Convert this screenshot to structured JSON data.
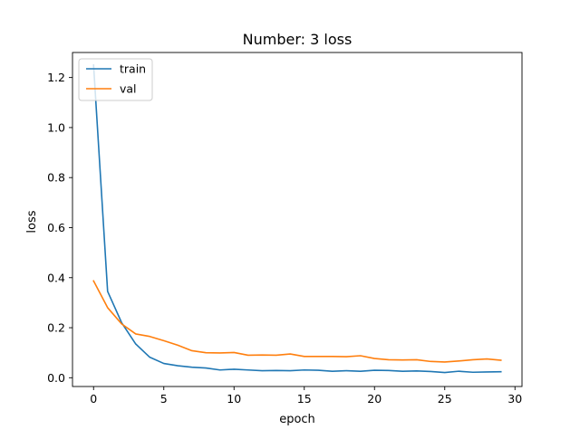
{
  "chart_data": {
    "type": "line",
    "title": "Number: 3 loss",
    "xlabel": "epoch",
    "ylabel": "loss",
    "xlim": [
      -1.5,
      30.5
    ],
    "ylim": [
      -0.035,
      1.3
    ],
    "xticks": [
      0,
      5,
      10,
      15,
      20,
      25,
      30
    ],
    "yticks": [
      0.0,
      0.2,
      0.4,
      0.6,
      0.8,
      1.0,
      1.2
    ],
    "xtick_labels": [
      "0",
      "5",
      "10",
      "15",
      "20",
      "25",
      "30"
    ],
    "ytick_labels": [
      "0.0",
      "0.2",
      "0.4",
      "0.6",
      "0.8",
      "1.0",
      "1.2"
    ],
    "grid": false,
    "legend_position": "upper-left",
    "x": [
      0,
      1,
      2,
      3,
      4,
      5,
      6,
      7,
      8,
      9,
      10,
      11,
      12,
      13,
      14,
      15,
      16,
      17,
      18,
      19,
      20,
      21,
      22,
      23,
      24,
      25,
      26,
      27,
      28,
      29
    ],
    "series": [
      {
        "name": "train",
        "color": "#1f77b4",
        "values": [
          1.25,
          0.345,
          0.22,
          0.135,
          0.082,
          0.057,
          0.048,
          0.042,
          0.039,
          0.031,
          0.034,
          0.031,
          0.028,
          0.029,
          0.028,
          0.031,
          0.03,
          0.026,
          0.028,
          0.026,
          0.03,
          0.029,
          0.026,
          0.027,
          0.025,
          0.021,
          0.026,
          0.022,
          0.023,
          0.024
        ]
      },
      {
        "name": "val",
        "color": "#ff7f0e",
        "values": [
          0.387,
          0.28,
          0.215,
          0.175,
          0.165,
          0.148,
          0.13,
          0.108,
          0.1,
          0.099,
          0.101,
          0.09,
          0.091,
          0.09,
          0.095,
          0.085,
          0.085,
          0.085,
          0.084,
          0.088,
          0.077,
          0.072,
          0.071,
          0.072,
          0.065,
          0.063,
          0.067,
          0.072,
          0.075,
          0.07
        ]
      }
    ]
  }
}
